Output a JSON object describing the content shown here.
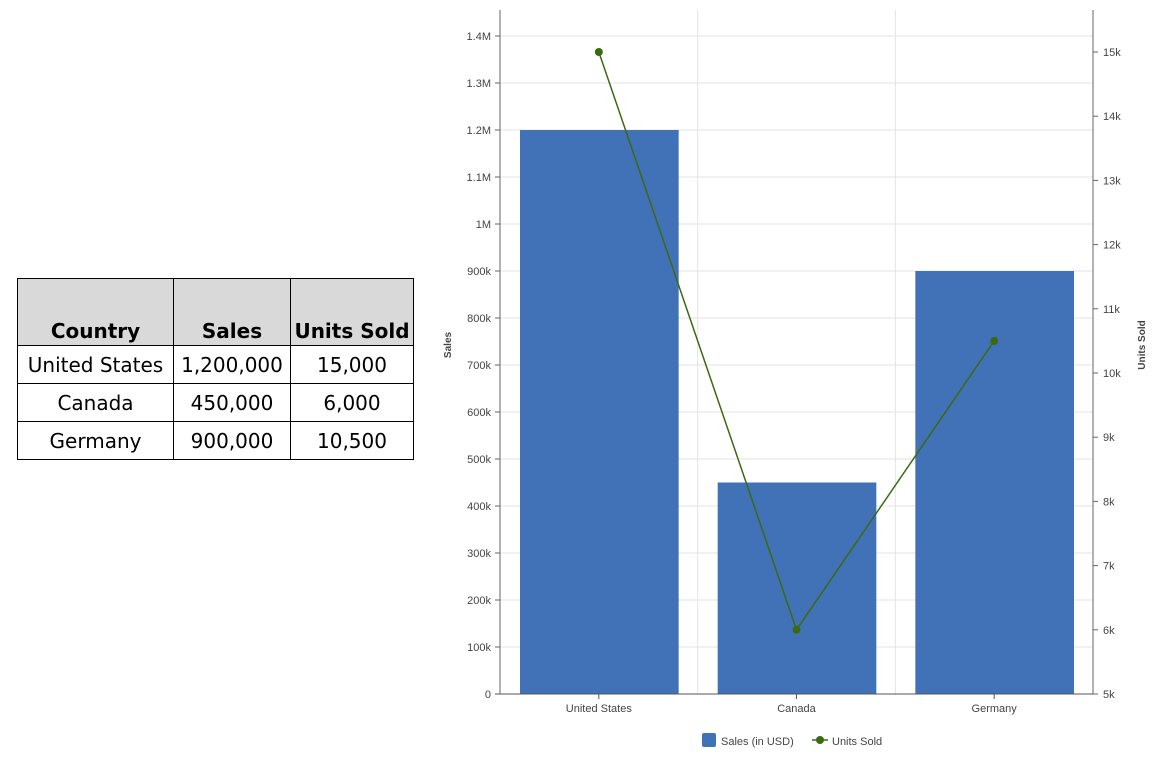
{
  "table": {
    "headers": [
      "Country",
      "Sales",
      "Units Sold"
    ],
    "rows": [
      [
        "United States",
        "1,200,000",
        "15,000"
      ],
      [
        "Canada",
        "450,000",
        "6,000"
      ],
      [
        "Germany",
        "900,000",
        "10,500"
      ]
    ]
  },
  "chart_data": {
    "type": "bar+line",
    "categories": [
      "United States",
      "Canada",
      "Germany"
    ],
    "series": [
      {
        "name": "Sales (in USD)",
        "type": "bar",
        "axis": "left",
        "values": [
          1200000,
          450000,
          900000
        ],
        "color": "#4172b8"
      },
      {
        "name": "Units Sold",
        "type": "line",
        "axis": "right",
        "values": [
          15000,
          6000,
          10500
        ],
        "color": "#3a6b10"
      }
    ],
    "ylabel": "Sales",
    "y2label": "Units Sold",
    "ylim": [
      0,
      1400000
    ],
    "y2lim": [
      5000,
      15000
    ],
    "yticks": [
      "0",
      "100k",
      "200k",
      "300k",
      "400k",
      "500k",
      "600k",
      "700k",
      "800k",
      "900k",
      "1M",
      "1.1M",
      "1.2M",
      "1.3M",
      "1.4M"
    ],
    "y2ticks": [
      "5k",
      "6k",
      "7k",
      "8k",
      "9k",
      "10k",
      "11k",
      "12k",
      "13k",
      "14k",
      "15k"
    ],
    "grid": true,
    "legend": "bottom"
  }
}
